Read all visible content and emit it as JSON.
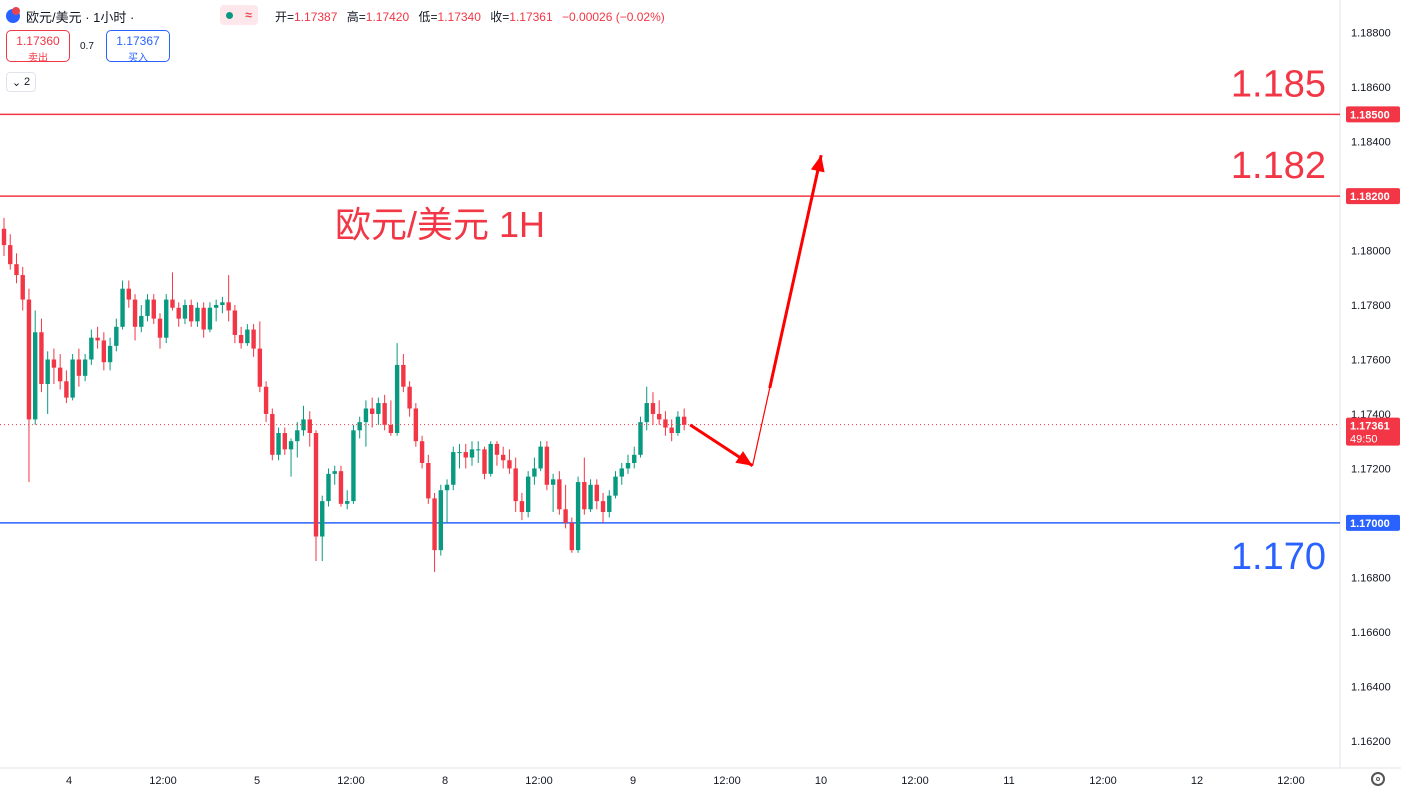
{
  "header": {
    "symbol_title": "欧元/美元 · 1小时 ·",
    "status_wave": "≈",
    "ohlc": [
      {
        "key": "开=",
        "value": "1.17387"
      },
      {
        "key": "高=",
        "value": "1.17420"
      },
      {
        "key": "低=",
        "value": "1.17340"
      },
      {
        "key": "收=",
        "value": "1.17361"
      },
      {
        "key": "",
        "value": "−0.00026 (−0.02%)"
      }
    ]
  },
  "trade": {
    "sell_price": "1.17360",
    "sell_label": "卖出",
    "spread": "0.7",
    "buy_price": "1.17367",
    "buy_label": "买入"
  },
  "collapse_count": "2",
  "colors": {
    "up": "#089981",
    "down": "#f23645",
    "resistance": "#f23645",
    "support": "#2962ff",
    "annotation_red": "#f23645",
    "annotation_blue": "#2962ff",
    "arrow": "#ff0000",
    "grid": "#e0e3eb",
    "text": "#131722"
  },
  "chart_data": {
    "type": "candlestick",
    "symbol": "欧元/美元",
    "timeframe": "1小时",
    "overlay_title": "欧元/美元 1H",
    "ylim": [
      1.161,
      1.1892
    ],
    "y_ticks": [
      "1.18800",
      "1.18600",
      "1.18400",
      "1.18200",
      "1.18000",
      "1.17800",
      "1.17600",
      "1.17400",
      "1.17200",
      "1.17000",
      "1.16800",
      "1.16600",
      "1.16400",
      "1.16200"
    ],
    "x_ticks": [
      "4",
      "12:00",
      "5",
      "12:00",
      "8",
      "12:00",
      "9",
      "12:00",
      "10",
      "12:00",
      "11",
      "12:00",
      "12",
      "12:00"
    ],
    "levels": [
      {
        "value": 1.185,
        "axis_label": "1.18500",
        "annotation": "1.185",
        "role": "resistance"
      },
      {
        "value": 1.182,
        "axis_label": "1.18200",
        "annotation": "1.182",
        "role": "resistance"
      },
      {
        "value": 1.17,
        "axis_label": "1.17000",
        "annotation": "1.170",
        "role": "support"
      }
    ],
    "last_price": {
      "value": 1.17361,
      "label": "1.17361",
      "countdown": "49:50"
    },
    "projection": [
      {
        "bar": 0,
        "price": 1.1736
      },
      {
        "bar": 10,
        "price": 1.1721
      },
      {
        "bar": 21,
        "price": 1.1835
      }
    ],
    "candles": [
      [
        1.1808,
        1.1812,
        1.1798,
        1.1802
      ],
      [
        1.1802,
        1.1806,
        1.1793,
        1.1795
      ],
      [
        1.1795,
        1.1799,
        1.1788,
        1.1791
      ],
      [
        1.1791,
        1.1794,
        1.1778,
        1.1782
      ],
      [
        1.1782,
        1.1786,
        1.1715,
        1.1738
      ],
      [
        1.1738,
        1.1778,
        1.1736,
        1.177
      ],
      [
        1.177,
        1.1775,
        1.1748,
        1.1751
      ],
      [
        1.1751,
        1.1763,
        1.174,
        1.176
      ],
      [
        1.176,
        1.1764,
        1.1751,
        1.1757
      ],
      [
        1.1757,
        1.1762,
        1.1749,
        1.1752
      ],
      [
        1.1752,
        1.1756,
        1.1744,
        1.1746
      ],
      [
        1.1746,
        1.1762,
        1.1745,
        1.176
      ],
      [
        1.176,
        1.1764,
        1.175,
        1.1754
      ],
      [
        1.1754,
        1.1762,
        1.1752,
        1.176
      ],
      [
        1.176,
        1.1771,
        1.1758,
        1.1768
      ],
      [
        1.1768,
        1.1772,
        1.1764,
        1.1767
      ],
      [
        1.1767,
        1.177,
        1.1756,
        1.1759
      ],
      [
        1.1759,
        1.1768,
        1.1756,
        1.1765
      ],
      [
        1.1765,
        1.1775,
        1.1763,
        1.1772
      ],
      [
        1.1772,
        1.1789,
        1.1771,
        1.1786
      ],
      [
        1.1786,
        1.1789,
        1.1779,
        1.1782
      ],
      [
        1.1782,
        1.1784,
        1.1767,
        1.1772
      ],
      [
        1.1772,
        1.178,
        1.177,
        1.1776
      ],
      [
        1.1776,
        1.1784,
        1.1774,
        1.1782
      ],
      [
        1.1782,
        1.1784,
        1.1773,
        1.1775
      ],
      [
        1.1775,
        1.1777,
        1.1764,
        1.1768
      ],
      [
        1.1768,
        1.1784,
        1.1766,
        1.1782
      ],
      [
        1.1782,
        1.1792,
        1.1778,
        1.1779
      ],
      [
        1.1779,
        1.1781,
        1.1772,
        1.1775
      ],
      [
        1.1775,
        1.1782,
        1.1773,
        1.178
      ],
      [
        1.178,
        1.1782,
        1.1772,
        1.1774
      ],
      [
        1.1774,
        1.1781,
        1.1772,
        1.1779
      ],
      [
        1.1779,
        1.1781,
        1.1768,
        1.1771
      ],
      [
        1.1771,
        1.1781,
        1.177,
        1.1779
      ],
      [
        1.1779,
        1.1782,
        1.1774,
        1.178
      ],
      [
        1.178,
        1.1783,
        1.1777,
        1.1781
      ],
      [
        1.1781,
        1.1791,
        1.1774,
        1.1778
      ],
      [
        1.1778,
        1.178,
        1.1766,
        1.1769
      ],
      [
        1.1769,
        1.1772,
        1.1764,
        1.1766
      ],
      [
        1.1766,
        1.1773,
        1.1765,
        1.1771
      ],
      [
        1.1771,
        1.1773,
        1.1761,
        1.1764
      ],
      [
        1.1764,
        1.1774,
        1.1748,
        1.175
      ],
      [
        1.175,
        1.1752,
        1.1737,
        1.174
      ],
      [
        1.174,
        1.1742,
        1.1723,
        1.1725
      ],
      [
        1.1725,
        1.1735,
        1.1723,
        1.1733
      ],
      [
        1.1733,
        1.1735,
        1.1725,
        1.1727
      ],
      [
        1.1727,
        1.1731,
        1.1717,
        1.173
      ],
      [
        1.173,
        1.1737,
        1.1724,
        1.1734
      ],
      [
        1.1734,
        1.1743,
        1.1732,
        1.1738
      ],
      [
        1.1738,
        1.1741,
        1.1728,
        1.1733
      ],
      [
        1.1733,
        1.1734,
        1.1686,
        1.1695
      ],
      [
        1.1695,
        1.171,
        1.1686,
        1.1708
      ],
      [
        1.1708,
        1.172,
        1.1706,
        1.1718
      ],
      [
        1.1718,
        1.1721,
        1.1714,
        1.1719
      ],
      [
        1.1719,
        1.1721,
        1.1706,
        1.1707
      ],
      [
        1.1707,
        1.1712,
        1.1705,
        1.1708
      ],
      [
        1.1708,
        1.1736,
        1.1707,
        1.1734
      ],
      [
        1.1734,
        1.1739,
        1.1731,
        1.1737
      ],
      [
        1.1737,
        1.1745,
        1.1728,
        1.1742
      ],
      [
        1.1742,
        1.1746,
        1.1735,
        1.174
      ],
      [
        1.174,
        1.1746,
        1.1736,
        1.1744
      ],
      [
        1.1744,
        1.1747,
        1.1734,
        1.1736
      ],
      [
        1.1736,
        1.1745,
        1.1732,
        1.1733
      ],
      [
        1.1733,
        1.1766,
        1.1732,
        1.1758
      ],
      [
        1.1758,
        1.1762,
        1.1748,
        1.175
      ],
      [
        1.175,
        1.1752,
        1.1739,
        1.1742
      ],
      [
        1.1742,
        1.1744,
        1.1728,
        1.173
      ],
      [
        1.173,
        1.1732,
        1.172,
        1.1722
      ],
      [
        1.1722,
        1.1725,
        1.1707,
        1.1709
      ],
      [
        1.1709,
        1.1711,
        1.1682,
        1.169
      ],
      [
        1.169,
        1.1714,
        1.1688,
        1.1712
      ],
      [
        1.1712,
        1.1716,
        1.17,
        1.1714
      ],
      [
        1.1714,
        1.1728,
        1.1712,
        1.1726
      ],
      [
        1.1726,
        1.1729,
        1.172,
        1.1726
      ],
      [
        1.1726,
        1.1729,
        1.172,
        1.1724
      ],
      [
        1.1724,
        1.173,
        1.1721,
        1.1727
      ],
      [
        1.1727,
        1.173,
        1.1722,
        1.1727
      ],
      [
        1.1727,
        1.1728,
        1.1716,
        1.1718
      ],
      [
        1.1718,
        1.173,
        1.1717,
        1.1729
      ],
      [
        1.1729,
        1.173,
        1.1721,
        1.1725
      ],
      [
        1.1725,
        1.1728,
        1.172,
        1.1723
      ],
      [
        1.1723,
        1.1727,
        1.1718,
        1.172
      ],
      [
        1.172,
        1.1724,
        1.1704,
        1.1708
      ],
      [
        1.1708,
        1.1711,
        1.1701,
        1.1704
      ],
      [
        1.1704,
        1.1719,
        1.1702,
        1.1717
      ],
      [
        1.1717,
        1.1724,
        1.1714,
        1.172
      ],
      [
        1.172,
        1.173,
        1.1719,
        1.1728
      ],
      [
        1.1728,
        1.173,
        1.1712,
        1.1714
      ],
      [
        1.1714,
        1.1718,
        1.1704,
        1.1716
      ],
      [
        1.1716,
        1.1719,
        1.1703,
        1.1705
      ],
      [
        1.1705,
        1.1714,
        1.1698,
        1.17
      ],
      [
        1.17,
        1.1702,
        1.1689,
        1.169
      ],
      [
        1.169,
        1.1717,
        1.1689,
        1.1715
      ],
      [
        1.1715,
        1.1724,
        1.1703,
        1.1705
      ],
      [
        1.1705,
        1.1716,
        1.1704,
        1.1714
      ],
      [
        1.1714,
        1.1716,
        1.1705,
        1.1708
      ],
      [
        1.1708,
        1.1711,
        1.17,
        1.1704
      ],
      [
        1.1704,
        1.1712,
        1.1702,
        1.171
      ],
      [
        1.171,
        1.1719,
        1.1709,
        1.1717
      ],
      [
        1.1717,
        1.1722,
        1.1714,
        1.172
      ],
      [
        1.172,
        1.1725,
        1.1718,
        1.1722
      ],
      [
        1.1722,
        1.1728,
        1.172,
        1.1725
      ],
      [
        1.1725,
        1.1739,
        1.1724,
        1.1737
      ],
      [
        1.1737,
        1.175,
        1.1734,
        1.1744
      ],
      [
        1.1744,
        1.1748,
        1.1736,
        1.174
      ],
      [
        1.174,
        1.1745,
        1.1736,
        1.1738
      ],
      [
        1.1738,
        1.1741,
        1.1732,
        1.1735
      ],
      [
        1.1735,
        1.1738,
        1.173,
        1.1733
      ],
      [
        1.1733,
        1.1741,
        1.1732,
        1.1739
      ],
      [
        1.1739,
        1.1742,
        1.1734,
        1.1736
      ]
    ]
  }
}
